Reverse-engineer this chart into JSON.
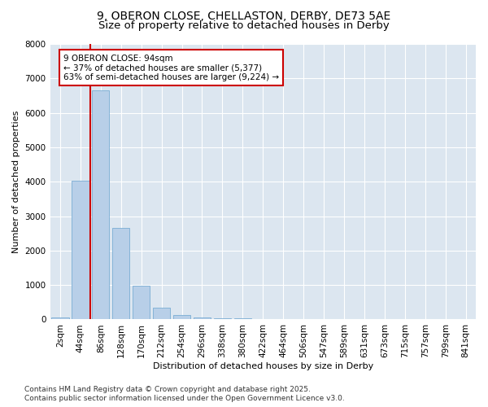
{
  "title_line1": "9, OBERON CLOSE, CHELLASTON, DERBY, DE73 5AE",
  "title_line2": "Size of property relative to detached houses in Derby",
  "xlabel": "Distribution of detached houses by size in Derby",
  "ylabel": "Number of detached properties",
  "categories": [
    "2sqm",
    "44sqm",
    "86sqm",
    "128sqm",
    "170sqm",
    "212sqm",
    "254sqm",
    "296sqm",
    "338sqm",
    "380sqm",
    "422sqm",
    "464sqm",
    "506sqm",
    "547sqm",
    "589sqm",
    "631sqm",
    "673sqm",
    "715sqm",
    "757sqm",
    "799sqm",
    "841sqm"
  ],
  "values": [
    50,
    4020,
    6650,
    2650,
    980,
    340,
    130,
    65,
    45,
    30,
    20,
    10,
    5,
    3,
    2,
    2,
    1,
    1,
    1,
    1,
    0
  ],
  "bar_color": "#b8cfe8",
  "bar_edge_color": "#7aadd4",
  "vline_x_index": 2,
  "marker_label": "9 OBERON CLOSE: 94sqm",
  "annotation_line1": "← 37% of detached houses are smaller (5,377)",
  "annotation_line2": "63% of semi-detached houses are larger (9,224) →",
  "vline_color": "#cc0000",
  "ylim": [
    0,
    8000
  ],
  "yticks": [
    0,
    1000,
    2000,
    3000,
    4000,
    5000,
    6000,
    7000,
    8000
  ],
  "bg_color": "#ffffff",
  "plot_bg_color": "#dce6f0",
  "grid_color": "#ffffff",
  "footer_line1": "Contains HM Land Registry data © Crown copyright and database right 2025.",
  "footer_line2": "Contains public sector information licensed under the Open Government Licence v3.0.",
  "title1_fontsize": 10,
  "title2_fontsize": 9.5,
  "axis_label_fontsize": 8,
  "tick_fontsize": 7.5,
  "annotation_fontsize": 7.5,
  "footer_fontsize": 6.5
}
